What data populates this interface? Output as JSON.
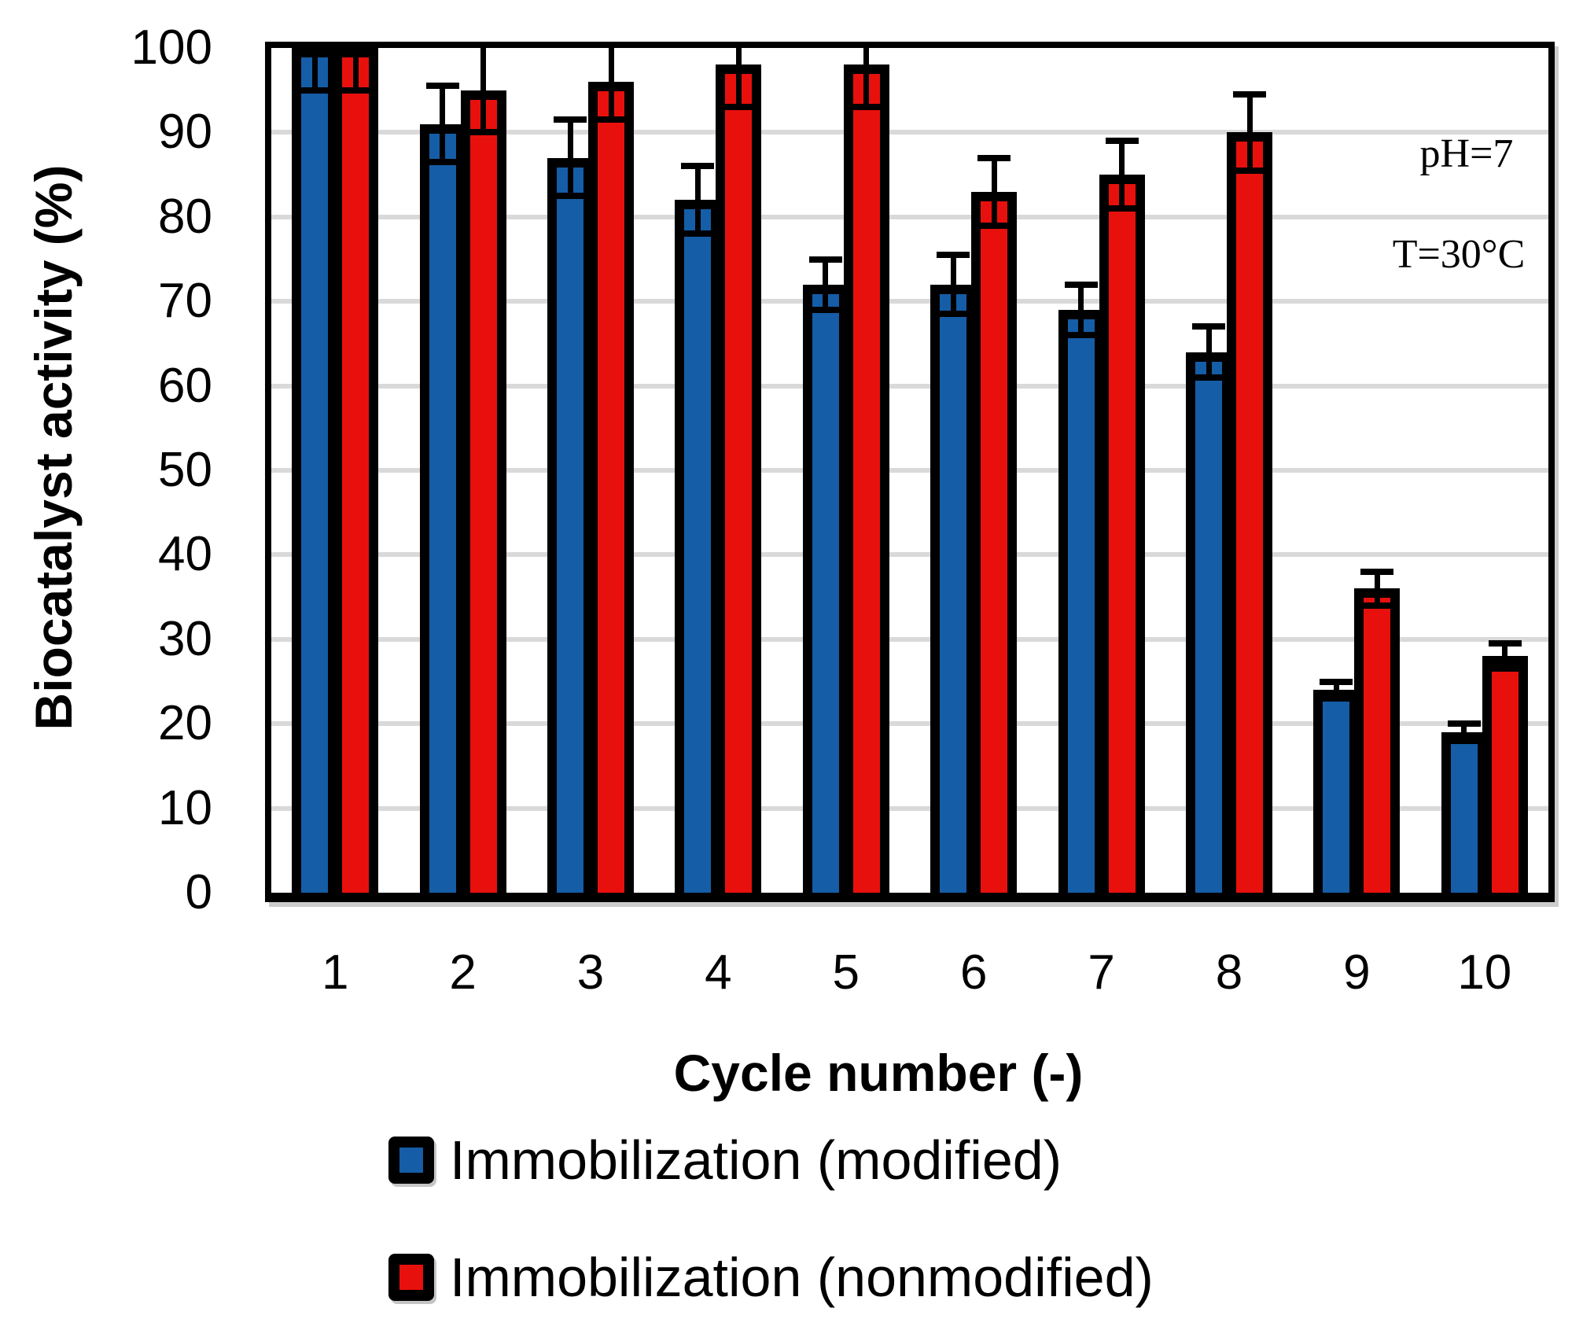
{
  "chart_data": {
    "type": "bar",
    "title": "",
    "xlabel": "Cycle number (-)",
    "ylabel": "Biocatalyst activity (%)",
    "categories": [
      "1",
      "2",
      "3",
      "4",
      "5",
      "6",
      "7",
      "8",
      "9",
      "10"
    ],
    "series": [
      {
        "name": "Immobilization (modified)",
        "color": "#155DA6",
        "values": [
          100,
          91,
          87,
          82,
          72,
          72,
          69,
          64,
          24,
          19
        ],
        "errors": [
          5,
          4.5,
          4.5,
          4,
          3,
          3.5,
          3,
          3,
          1,
          1
        ]
      },
      {
        "name": "Immobilization (nonmodified)",
        "color": "#E8100C",
        "values": [
          100,
          95,
          96,
          98,
          98,
          83,
          85,
          90,
          36,
          28
        ],
        "errors": [
          5,
          5,
          4.5,
          5,
          5,
          4,
          4,
          4.5,
          2,
          1.5
        ]
      }
    ],
    "ylim": [
      0,
      100
    ],
    "ytick_step": 10,
    "grid": true,
    "legend_position": "bottom-left",
    "annotations": [
      "pH=7",
      "T=30°C"
    ],
    "error_bar_style": "caps above and below, clipped at y=100",
    "gridline_color": "#d9d9d9",
    "bar_outline_color": "#000000"
  }
}
